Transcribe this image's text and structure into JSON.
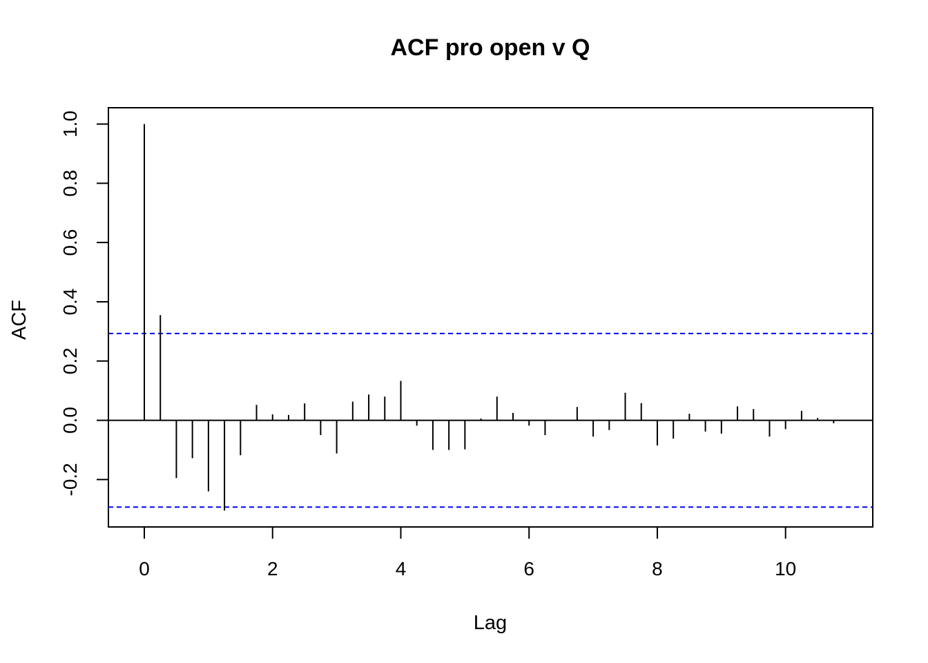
{
  "chart_data": {
    "type": "bar",
    "title": "ACF pro open v Q",
    "xlabel": "Lag",
    "ylabel": "ACF",
    "xlim": [
      -0.56,
      11.36
    ],
    "ylim": [
      -0.36,
      1.055
    ],
    "x_ticks": [
      0,
      2,
      4,
      6,
      8,
      10
    ],
    "x_tick_labels": [
      "0",
      "2",
      "4",
      "6",
      "8",
      "10"
    ],
    "y_ticks": [
      -0.2,
      0.0,
      0.2,
      0.4,
      0.6,
      0.8,
      1.0
    ],
    "y_tick_labels": [
      "-0.2",
      "0.0",
      "0.2",
      "0.4",
      "0.6",
      "0.8",
      "1.0"
    ],
    "confidence_bounds": [
      0.293,
      -0.293
    ],
    "confidence_color": "#0000ff",
    "bar_color": "#000000",
    "grid": false,
    "lags": [
      0,
      0.25,
      0.5,
      0.75,
      1,
      1.25,
      1.5,
      1.75,
      2,
      2.25,
      2.5,
      2.75,
      3,
      3.25,
      3.5,
      3.75,
      4,
      4.25,
      4.5,
      4.75,
      5,
      5.25,
      5.5,
      5.75,
      6,
      6.25,
      6.5,
      6.75,
      7,
      7.25,
      7.5,
      7.75,
      8,
      8.25,
      8.5,
      8.75,
      9,
      9.25,
      9.5,
      9.75,
      10,
      10.25,
      10.5,
      10.75
    ],
    "values": [
      1.0,
      0.355,
      -0.195,
      -0.128,
      -0.24,
      -0.305,
      -0.118,
      0.052,
      0.02,
      0.018,
      0.057,
      -0.05,
      -0.112,
      0.063,
      0.087,
      0.08,
      0.133,
      -0.018,
      -0.1,
      -0.1,
      -0.098,
      0.006,
      0.08,
      0.025,
      -0.018,
      -0.05,
      0.0,
      0.045,
      -0.055,
      -0.033,
      0.093,
      0.058,
      -0.085,
      -0.062,
      0.022,
      -0.038,
      -0.045,
      0.047,
      0.038,
      -0.055,
      -0.03,
      0.032,
      0.008,
      -0.01
    ]
  }
}
